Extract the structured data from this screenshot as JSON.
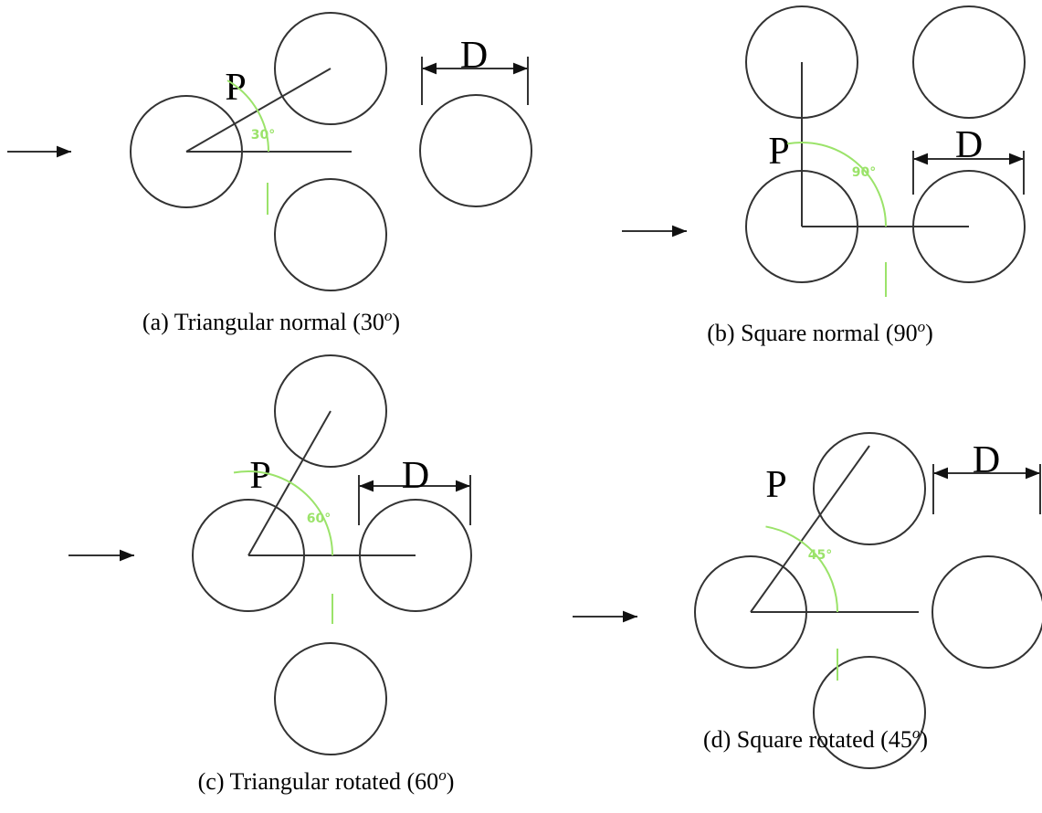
{
  "panels": [
    {
      "pitch_label": "P",
      "diameter_label": "D",
      "angle_label": "30°",
      "caption": {
        "text": "(a) Triangular normal (30",
        "sup": "o",
        "end": ")"
      }
    },
    {
      "pitch_label": "P",
      "diameter_label": "D",
      "angle_label": "90°",
      "caption": {
        "text": "(b) Square normal (90",
        "sup": "o",
        "end": ")"
      }
    },
    {
      "pitch_label": "P",
      "diameter_label": "D",
      "angle_label": "60°",
      "caption": {
        "text": "(c) Triangular rotated (60",
        "sup": "o",
        "end": ")"
      }
    },
    {
      "pitch_label": "P",
      "diameter_label": "D",
      "angle_label": "45°",
      "caption": {
        "text": "(d) Square rotated (45",
        "sup": "o",
        "end": ")"
      }
    }
  ]
}
